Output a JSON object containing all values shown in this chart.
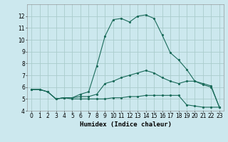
{
  "title": "",
  "xlabel": "Humidex (Indice chaleur)",
  "bg_color": "#cce8ee",
  "grid_color": "#aacccc",
  "line_color": "#1a6b5a",
  "xlim": [
    -0.5,
    23.5
  ],
  "ylim": [
    4,
    13
  ],
  "yticks": [
    4,
    5,
    6,
    7,
    8,
    9,
    10,
    11,
    12
  ],
  "xticks": [
    0,
    1,
    2,
    3,
    4,
    5,
    6,
    7,
    8,
    9,
    10,
    11,
    12,
    13,
    14,
    15,
    16,
    17,
    18,
    19,
    20,
    21,
    22,
    23
  ],
  "curve1_x": [
    0,
    1,
    2,
    3,
    4,
    5,
    6,
    7,
    8,
    9,
    10,
    11,
    12,
    13,
    14,
    15,
    16,
    17,
    18,
    19,
    20,
    21,
    22,
    23
  ],
  "curve1_y": [
    5.8,
    5.8,
    5.6,
    5.0,
    5.1,
    5.1,
    5.2,
    5.2,
    5.4,
    6.3,
    6.5,
    6.8,
    7.0,
    7.2,
    7.4,
    7.2,
    6.8,
    6.5,
    6.3,
    6.5,
    6.5,
    6.2,
    6.0,
    4.3
  ],
  "curve2_x": [
    0,
    1,
    2,
    3,
    4,
    5,
    6,
    7,
    8,
    9,
    10,
    11,
    12,
    13,
    14,
    15,
    16,
    17,
    18,
    19,
    20,
    21,
    22,
    23
  ],
  "curve2_y": [
    5.8,
    5.8,
    5.6,
    5.0,
    5.1,
    5.1,
    5.4,
    5.6,
    7.8,
    10.3,
    11.7,
    11.8,
    11.5,
    12.0,
    12.1,
    11.8,
    10.4,
    8.9,
    8.3,
    7.5,
    6.5,
    6.3,
    6.1,
    4.3
  ],
  "curve3_x": [
    0,
    1,
    2,
    3,
    4,
    5,
    6,
    7,
    8,
    9,
    10,
    11,
    12,
    13,
    14,
    15,
    16,
    17,
    18,
    19,
    20,
    21,
    22,
    23
  ],
  "curve3_y": [
    5.8,
    5.8,
    5.6,
    5.0,
    5.1,
    5.0,
    5.0,
    5.0,
    5.0,
    5.0,
    5.1,
    5.1,
    5.2,
    5.2,
    5.3,
    5.3,
    5.3,
    5.3,
    5.3,
    4.5,
    4.4,
    4.3,
    4.3,
    4.3
  ],
  "tick_fontsize": 5.5,
  "xlabel_fontsize": 6.5,
  "marker_size": 2.5,
  "line_width": 0.8
}
